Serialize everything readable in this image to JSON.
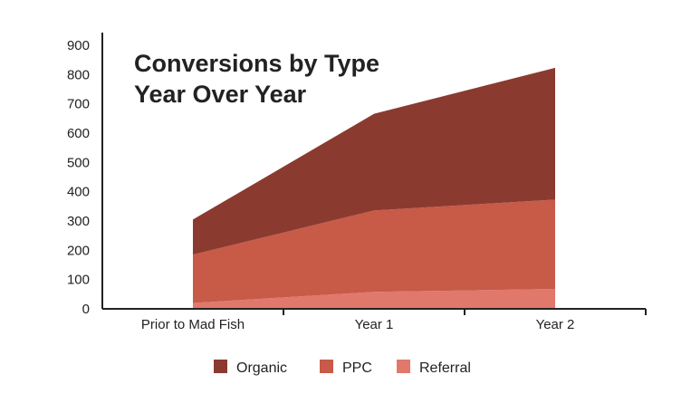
{
  "chart_data": {
    "type": "area",
    "stacked": true,
    "title": [
      "Conversions by Type",
      "Year Over Year"
    ],
    "xlabel": "",
    "ylabel": "",
    "categories": [
      "Prior to Mad Fish",
      "Year 1",
      "Year 2"
    ],
    "ylim": [
      0,
      900
    ],
    "yticks": [
      0,
      100,
      200,
      300,
      400,
      500,
      600,
      700,
      800,
      900
    ],
    "grid": false,
    "legend_position": "bottom",
    "series": [
      {
        "name": "Organic",
        "color": "#8B3A30",
        "values": [
          120,
          330,
          450
        ]
      },
      {
        "name": "PPC",
        "color": "#C85A48",
        "values": [
          165,
          278,
          305
        ]
      },
      {
        "name": "Referral",
        "color": "#E1786C",
        "values": [
          20,
          58,
          68
        ]
      }
    ]
  }
}
